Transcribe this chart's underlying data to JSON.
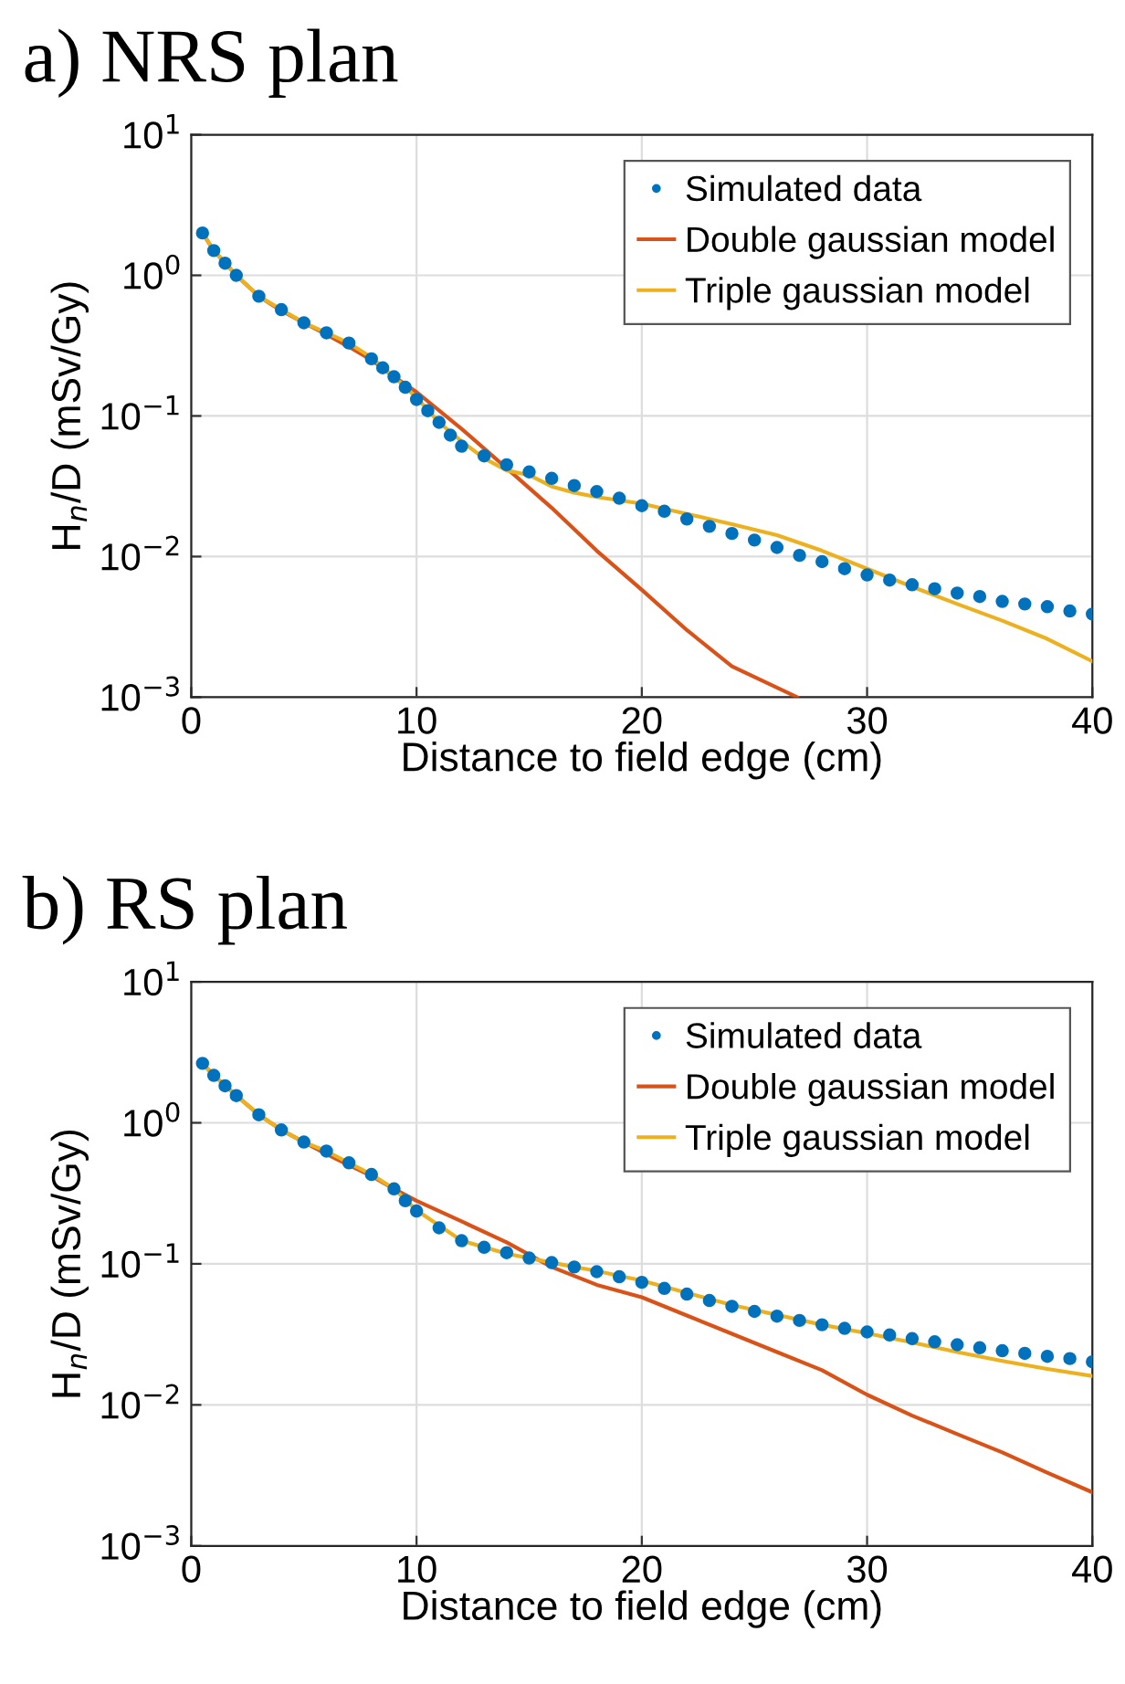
{
  "chart_data": [
    {
      "type": "scatter",
      "title": "a) NRS plan",
      "xlabel": "Distance to field edge (cm)",
      "ylabel": "H$_{n}$/D (mSv/Gy)",
      "log": "y",
      "grid": true,
      "legend": "top right",
      "xlim": [
        0,
        40
      ],
      "xticks": [
        0,
        10,
        20,
        30,
        40
      ],
      "ylim": [
        0.001,
        10
      ],
      "yticks": [
        {
          "value": 0.001,
          "label": "10$^{−3}$"
        },
        {
          "value": 0.01,
          "label": "10$^{−2}$"
        },
        {
          "value": 0.1,
          "label": "10$^{−1}$"
        },
        {
          "value": 1,
          "label": "10$^{0}$"
        },
        {
          "value": 10,
          "label": "10$^{1}$"
        }
      ],
      "series": [
        {
          "name": "Simulated data",
          "marker": "circle",
          "color": "#0072bd",
          "x": [
            0.5,
            1,
            1.5,
            2,
            3,
            4,
            5,
            6,
            7,
            8,
            8.5,
            9,
            9.5,
            10,
            10.5,
            11,
            11.5,
            12,
            13,
            14,
            15,
            16,
            17,
            18,
            19,
            20,
            21,
            22,
            23,
            24,
            25,
            26,
            27,
            28,
            29,
            30,
            31,
            32,
            33,
            34,
            35,
            36,
            37,
            38,
            39,
            40
          ],
          "values": [
            2.0,
            1.5,
            1.22,
            1.0,
            0.71,
            0.57,
            0.46,
            0.39,
            0.33,
            0.255,
            0.22,
            0.19,
            0.16,
            0.131,
            0.109,
            0.09,
            0.073,
            0.061,
            0.052,
            0.045,
            0.04,
            0.036,
            0.032,
            0.029,
            0.026,
            0.023,
            0.021,
            0.0185,
            0.0164,
            0.0146,
            0.0131,
            0.0116,
            0.0102,
            0.0092,
            0.0082,
            0.0074,
            0.0068,
            0.0063,
            0.0059,
            0.0055,
            0.0052,
            0.0048,
            0.0046,
            0.0044,
            0.0041,
            0.0039
          ]
        },
        {
          "name": "Double gaussian model",
          "type": "line",
          "marker": "none",
          "line_style": "solid",
          "color": "#d95319",
          "x": [
            0.5,
            1,
            2,
            3,
            4,
            5,
            6,
            7,
            8,
            9,
            10,
            12,
            14,
            16,
            18,
            20,
            22,
            24,
            26.9
          ],
          "values": [
            2.0,
            1.5,
            1.0,
            0.71,
            0.56,
            0.46,
            0.38,
            0.31,
            0.25,
            0.19,
            0.148,
            0.081,
            0.0425,
            0.0222,
            0.011,
            0.0058,
            0.003,
            0.00166,
            0.001
          ]
        },
        {
          "name": "Triple gaussian model",
          "type": "line",
          "marker": "none",
          "line_style": "solid",
          "color": "#edb120",
          "x": [
            0.5,
            1,
            2,
            3,
            4,
            5,
            6,
            7,
            8,
            9,
            10,
            11,
            12,
            13,
            14,
            15,
            16,
            17,
            18,
            20,
            22,
            24,
            26,
            28,
            30,
            32,
            34,
            36,
            38,
            40
          ],
          "values": [
            2.0,
            1.5,
            1.0,
            0.71,
            0.57,
            0.46,
            0.39,
            0.33,
            0.26,
            0.19,
            0.135,
            0.09,
            0.066,
            0.05,
            0.041,
            0.038,
            0.0315,
            0.0285,
            0.0265,
            0.0238,
            0.0201,
            0.017,
            0.0142,
            0.011,
            0.0082,
            0.0061,
            0.0046,
            0.0035,
            0.0026,
            0.0018
          ]
        }
      ]
    },
    {
      "type": "scatter",
      "title": "b) RS plan",
      "xlabel": "Distance to field edge (cm)",
      "ylabel": "H$_{n}$/D (mSv/Gy)",
      "log": "y",
      "grid": true,
      "legend": "top right",
      "xlim": [
        0,
        40
      ],
      "xticks": [
        0,
        10,
        20,
        30,
        40
      ],
      "ylim": [
        0.001,
        10
      ],
      "yticks": [
        {
          "value": 0.001,
          "label": "10$^{−3}$"
        },
        {
          "value": 0.01,
          "label": "10$^{−2}$"
        },
        {
          "value": 0.1,
          "label": "10$^{−1}$"
        },
        {
          "value": 1,
          "label": "10$^{0}$"
        },
        {
          "value": 10,
          "label": "10$^{1}$"
        }
      ],
      "series": [
        {
          "name": "Simulated data",
          "marker": "circle",
          "color": "#0072bd",
          "x": [
            0.5,
            1,
            1.5,
            2,
            3,
            4,
            5,
            6,
            7,
            8,
            9,
            9.5,
            10,
            11,
            12,
            13,
            14,
            15,
            16,
            17,
            18,
            19,
            20,
            21,
            22,
            23,
            24,
            25,
            26,
            27,
            28,
            29,
            30,
            31,
            32,
            33,
            34,
            35,
            36,
            37,
            38,
            39,
            40
          ],
          "values": [
            2.64,
            2.17,
            1.83,
            1.56,
            1.14,
            0.89,
            0.73,
            0.63,
            0.52,
            0.43,
            0.34,
            0.28,
            0.237,
            0.18,
            0.146,
            0.131,
            0.12,
            0.11,
            0.102,
            0.095,
            0.088,
            0.081,
            0.074,
            0.067,
            0.061,
            0.055,
            0.05,
            0.046,
            0.0426,
            0.0397,
            0.037,
            0.0349,
            0.0329,
            0.0313,
            0.0295,
            0.028,
            0.0267,
            0.0254,
            0.0242,
            0.0232,
            0.0221,
            0.0213,
            0.0202
          ]
        },
        {
          "name": "Double gaussian model",
          "type": "line",
          "marker": "none",
          "line_style": "solid",
          "color": "#d95319",
          "x": [
            0.5,
            1,
            2,
            3,
            4,
            5,
            6,
            7,
            8,
            9,
            10,
            12,
            14,
            16,
            18,
            20,
            22,
            24,
            26,
            28,
            30,
            32,
            34,
            36,
            38,
            40
          ],
          "values": [
            2.64,
            2.17,
            1.56,
            1.14,
            0.89,
            0.73,
            0.6,
            0.5,
            0.42,
            0.34,
            0.28,
            0.2,
            0.142,
            0.095,
            0.071,
            0.058,
            0.043,
            0.0319,
            0.0237,
            0.0176,
            0.0118,
            0.0084,
            0.0062,
            0.0046,
            0.0033,
            0.0024
          ]
        },
        {
          "name": "Triple gaussian model",
          "type": "line",
          "marker": "none",
          "line_style": "solid",
          "color": "#edb120",
          "x": [
            0.5,
            1,
            2,
            3,
            4,
            5,
            6,
            7,
            8,
            9,
            10,
            12,
            14,
            16,
            18,
            20,
            24,
            28,
            30,
            32,
            34,
            36,
            38,
            40
          ],
          "values": [
            2.64,
            2.17,
            1.56,
            1.14,
            0.89,
            0.73,
            0.63,
            0.52,
            0.43,
            0.34,
            0.24,
            0.146,
            0.118,
            0.102,
            0.089,
            0.076,
            0.051,
            0.037,
            0.0322,
            0.0277,
            0.0237,
            0.0205,
            0.018,
            0.016
          ]
        }
      ]
    }
  ]
}
